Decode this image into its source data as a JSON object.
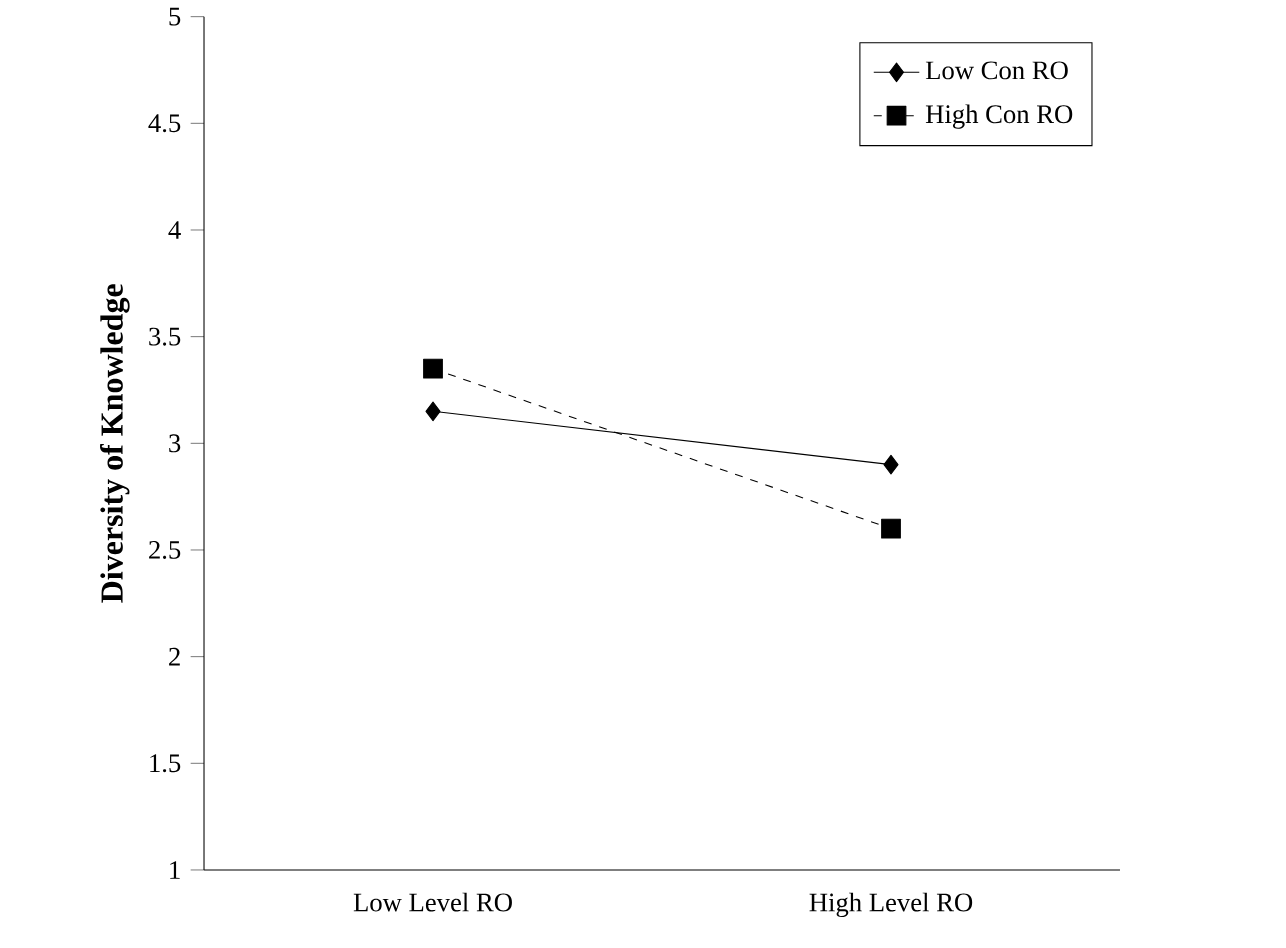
{
  "chart_data": {
    "type": "line",
    "ylabel": "Diversity of Knowledge",
    "categories": [
      "Low Level RO",
      "High Level RO"
    ],
    "series": [
      {
        "name": "Low Con RO",
        "color": "#000000",
        "values": [
          3.15,
          2.9
        ],
        "marker": "diamond",
        "line_style": "solid"
      },
      {
        "name": "High Con RO",
        "color": "#000000",
        "values": [
          3.35,
          2.6
        ],
        "marker": "square",
        "line_style": "dashed"
      }
    ],
    "ylim": [
      1,
      5
    ],
    "yticks": [
      1,
      1.5,
      2,
      2.5,
      3,
      3.5,
      4,
      4.5,
      5
    ],
    "grid": false,
    "legend": "top right"
  }
}
